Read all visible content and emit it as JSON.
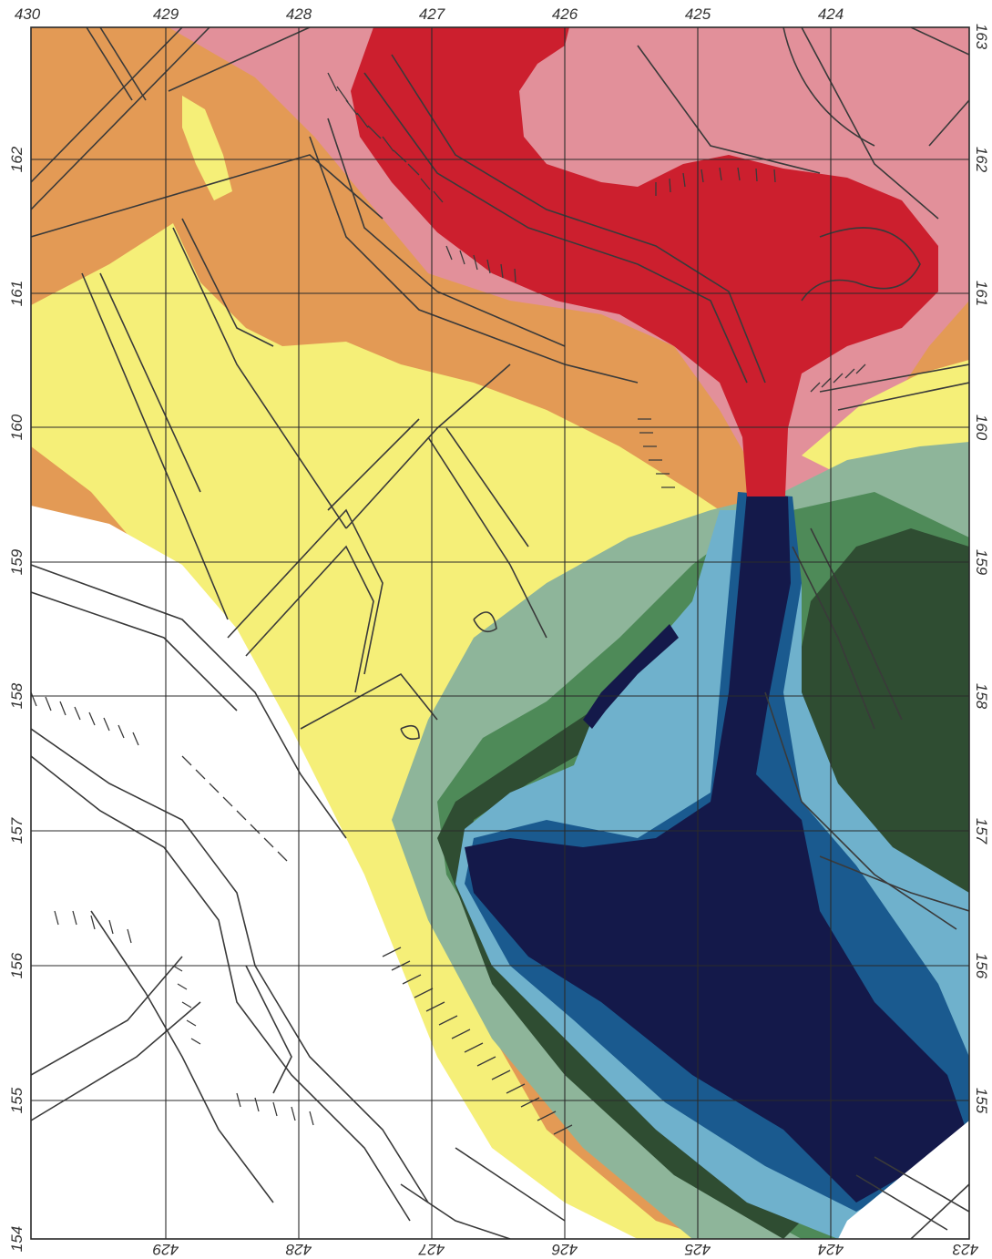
{
  "map": {
    "axes": {
      "top_labels": [
        "430",
        "429",
        "428",
        "427",
        "426",
        "425",
        "424"
      ],
      "bottom_labels": [
        "429",
        "428",
        "427",
        "426",
        "425",
        "424",
        "423"
      ],
      "left_labels": [
        "161",
        "160",
        "159",
        "158",
        "157",
        "156",
        "155",
        "154"
      ],
      "left_top_labels": [
        "162"
      ],
      "right_labels": [
        "163",
        "162",
        "161",
        "160",
        "159",
        "158",
        "157",
        "156",
        "155"
      ],
      "corner_labels": {
        "top_left": "430",
        "bottom_left": "154",
        "bottom_right": "423",
        "top_right": "163"
      }
    },
    "palette": {
      "red": "#cc1f2e",
      "pink": "#e2909a",
      "orange": "#e39a55",
      "yellow": "#f5ef78",
      "grey_green": "#8eb59a",
      "green": "#4e8a58",
      "dark_green": "#2f4d32",
      "light_blue": "#6fb1cc",
      "blue": "#1a5a8f",
      "navy": "#14194a",
      "white": "#ffffff",
      "line": "#3a3a3a"
    }
  }
}
